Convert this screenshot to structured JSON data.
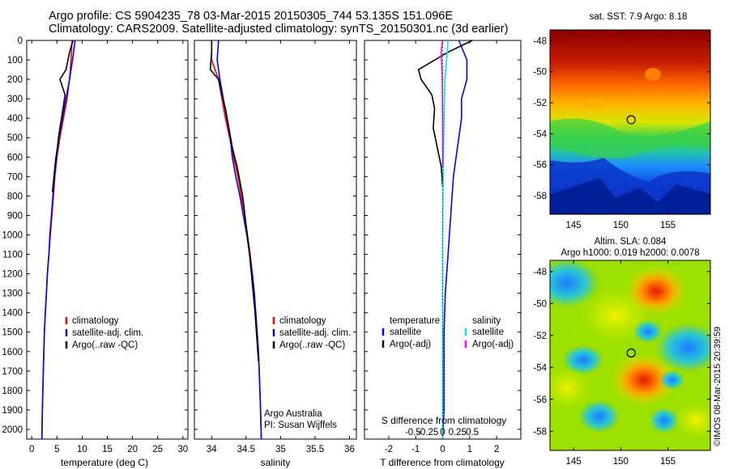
{
  "header": {
    "line1": "Argo profile: CS 5904235_78 03-Mar-2015 20150305_744 53.135S 151.096E",
    "line2": "Climatology: CARS2009. Satellite-adjusted climatology: synTS_20150301.nc (3d earlier)"
  },
  "colors": {
    "climatology": "#ff0000",
    "satellite": "#0000ff",
    "argo": "#000000",
    "salinity_satellite": "#00e5e5",
    "salinity_argo": "#ff00ff"
  },
  "depth_axis": {
    "range": [
      0,
      2050
    ],
    "ticks": [
      "0",
      "100",
      "200",
      "300",
      "400",
      "500",
      "600",
      "700",
      "800",
      "900",
      "1000",
      "1100",
      "1200",
      "1300",
      "1400",
      "1500",
      "1600",
      "1700",
      "1800",
      "1900",
      "2000"
    ]
  },
  "chart_data": [
    {
      "type": "line",
      "panel": "temperature",
      "xlabel": "temperature (deg C)",
      "xlim": [
        -1,
        31
      ],
      "xticks": [
        "0",
        "5",
        "10",
        "15",
        "20",
        "25",
        "30"
      ],
      "ylim": [
        2050,
        0
      ],
      "series": [
        {
          "name": "climatology",
          "x": [
            8,
            7.8,
            7.5,
            7.0,
            6.3,
            5.6,
            5.0,
            4.6,
            4.3,
            4.0,
            3.7,
            3.4,
            3.1,
            2.9,
            2.7,
            2.5,
            2.4,
            2.3,
            2.2,
            2.1,
            2.0
          ],
          "y": [
            0,
            100,
            200,
            300,
            400,
            500,
            600,
            700,
            800,
            900,
            1000,
            1100,
            1200,
            1300,
            1400,
            1500,
            1600,
            1700,
            1800,
            1900,
            2050
          ]
        },
        {
          "name": "satellite-adj. clim.",
          "x": [
            8.6,
            8.1,
            7.5,
            6.8,
            6.1,
            5.4,
            4.9,
            4.5,
            4.2,
            3.9,
            3.6,
            3.4,
            3.1,
            2.9,
            2.7,
            2.5,
            2.4,
            2.3,
            2.2,
            2.1,
            2.0
          ],
          "y": [
            0,
            100,
            200,
            300,
            400,
            500,
            600,
            700,
            800,
            900,
            1000,
            1100,
            1200,
            1300,
            1400,
            1500,
            1600,
            1700,
            1800,
            1900,
            2050
          ]
        },
        {
          "name": "Argo(..raw -QC)",
          "x": [
            8.2,
            7.5,
            6.8,
            5.6,
            6.6,
            6.2,
            5.9,
            5.6,
            5.3,
            5.1,
            4.8,
            4.6,
            4.4,
            4.1
          ],
          "y": [
            0,
            60,
            150,
            200,
            280,
            350,
            400,
            450,
            500,
            550,
            600,
            650,
            700,
            780
          ]
        }
      ],
      "legend": [
        "climatology",
        "satellite-adj. clim.",
        "Argo(..raw -QC)"
      ]
    },
    {
      "type": "line",
      "panel": "salinity",
      "xlabel": "salinity",
      "xlim": [
        33.75,
        36.1
      ],
      "xticks": [
        "34",
        "34.5",
        "35",
        "35.5",
        "36"
      ],
      "ylim": [
        2050,
        0
      ],
      "series": [
        {
          "name": "climatology",
          "x": [
            34.0,
            34.0,
            34.1,
            34.15,
            34.2,
            34.26,
            34.32,
            34.38,
            34.43,
            34.48,
            34.52,
            34.56,
            34.59,
            34.62,
            34.64,
            34.66,
            34.68,
            34.69,
            34.7,
            34.71,
            34.72
          ],
          "y": [
            0,
            100,
            200,
            300,
            400,
            500,
            600,
            700,
            800,
            900,
            1000,
            1100,
            1200,
            1300,
            1400,
            1500,
            1600,
            1700,
            1800,
            1900,
            2050
          ]
        },
        {
          "name": "satellite-adj. clim.",
          "x": [
            34.1,
            34.08,
            34.12,
            34.17,
            34.22,
            34.27,
            34.3,
            34.35,
            34.41,
            34.46,
            34.51,
            34.55,
            34.59,
            34.62,
            34.64,
            34.66,
            34.68,
            34.69,
            34.7,
            34.71,
            34.72
          ],
          "y": [
            0,
            100,
            200,
            300,
            400,
            500,
            600,
            700,
            800,
            900,
            1000,
            1100,
            1200,
            1300,
            1400,
            1500,
            1600,
            1700,
            1800,
            1900,
            2050
          ]
        },
        {
          "name": "Argo(..raw -QC)",
          "x": [
            34.0,
            34.0,
            33.98,
            34.1,
            34.15,
            34.2,
            34.25,
            34.3,
            34.37,
            34.45,
            34.5,
            34.55,
            34.59,
            34.63,
            34.66,
            34.68
          ],
          "y": [
            0,
            60,
            150,
            200,
            280,
            350,
            450,
            550,
            650,
            800,
            950,
            1100,
            1250,
            1400,
            1550,
            1650
          ]
        }
      ],
      "legend": [
        "climatology",
        "satellite-adj. clim.",
        "Argo(..raw -QC)"
      ],
      "annotation": [
        "Argo Australia",
        "PI: Susan Wijffels"
      ]
    },
    {
      "type": "line",
      "panel": "differences",
      "xlabel_bottom": "T difference from climatology",
      "xlabel_top": "S difference from climatology",
      "xlim": [
        -2.9,
        2.9
      ],
      "xticks": [
        "-2",
        "-1",
        "0",
        "1",
        "2"
      ],
      "s_xticks": [
        "-0.5",
        "-0.25",
        "0",
        "0.25",
        "0.5"
      ],
      "ylim": [
        2050,
        0
      ],
      "series": [
        {
          "name": "temperature satellite",
          "x": [
            0.6,
            0.9,
            0.9,
            0.7,
            0.7,
            0.6,
            0.55,
            0.5,
            0.4,
            0.35,
            0.3,
            0.25,
            0.2,
            0.15,
            0.1,
            0.05,
            0.05,
            0.05,
            0.0
          ],
          "y": [
            0,
            100,
            200,
            300,
            400,
            500,
            550,
            600,
            700,
            800,
            900,
            1000,
            1100,
            1200,
            1300,
            1500,
            1700,
            1900,
            2050
          ]
        },
        {
          "name": "temperature Argo(-adj)",
          "x": [
            1.1,
            0.2,
            -0.9,
            -0.8,
            -0.4,
            -0.3,
            -0.35,
            -0.2,
            -0.05,
            0.0
          ],
          "y": [
            0,
            60,
            150,
            200,
            280,
            350,
            450,
            550,
            650,
            750
          ]
        },
        {
          "name": "salinity satellite",
          "x": [
            0.2,
            0.15,
            0.08,
            0.05,
            0.03,
            0.01,
            0.0,
            0.0,
            0.0
          ],
          "y": [
            0,
            100,
            200,
            400,
            600,
            800,
            1100,
            1500,
            2050
          ]
        },
        {
          "name": "salinity Argo(-adj)",
          "x": [
            0.0,
            -0.06,
            -0.02,
            -0.01,
            0.0,
            0.0
          ],
          "y": [
            0,
            60,
            150,
            250,
            450,
            650
          ]
        }
      ],
      "legend": {
        "temperature_title": "temperature",
        "salinity_title": "salinity",
        "entries": [
          "satellite",
          "Argo(-adj)",
          "satellite",
          "Argo(-adj)"
        ]
      }
    }
  ],
  "maps": [
    {
      "title": "sat. SST: 7.9 Argo: 8.18",
      "x_ticks": [
        "145",
        "150",
        "155"
      ],
      "y_ticks": [
        "-48",
        "-50",
        "-52",
        "-54",
        "-56",
        "-58"
      ],
      "marker": [
        151.1,
        -53.1
      ],
      "lon_range": [
        142.5,
        159.5
      ],
      "lat_range": [
        -59.2,
        -47.3
      ]
    },
    {
      "title_line1": "Altim. SLA: 0.084",
      "title_line2": "Argo h1000: 0.019 h2000: 0.0078",
      "x_ticks": [
        "145",
        "150",
        "155"
      ],
      "y_ticks": [
        "-48",
        "-50",
        "-52",
        "-54",
        "-56",
        "-58"
      ],
      "marker": [
        151.1,
        -53.1
      ],
      "lon_range": [
        142.5,
        159.5
      ],
      "lat_range": [
        -59.2,
        -47.3
      ]
    }
  ],
  "credit": "©IMOS 08-Mar-2015 20:39:59"
}
